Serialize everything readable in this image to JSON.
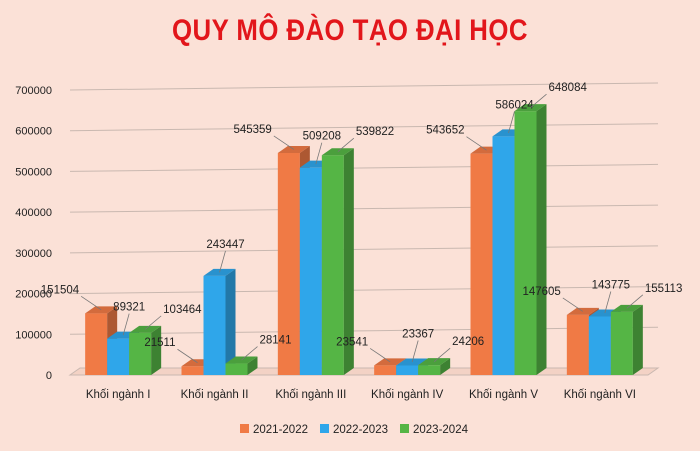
{
  "chart_data": {
    "type": "bar",
    "title": "QUY MÔ ĐÀO TẠO ĐẠI HỌC",
    "categories": [
      "Khối ngành I",
      "Khối ngành II",
      "Khối ngành III",
      "Khối ngành IV",
      "Khối ngành V",
      "Khối ngành VI"
    ],
    "series": [
      {
        "name": "2021-2022",
        "values": [
          151504,
          21511,
          545359,
          23541,
          543652,
          147605
        ],
        "color": "#f07a45"
      },
      {
        "name": "2022-2023",
        "values": [
          89321,
          243447,
          509208,
          23367,
          586024,
          143775
        ],
        "color": "#2fa6ea"
      },
      {
        "name": "2023-2024",
        "values": [
          103464,
          28141,
          539822,
          24206,
          648084,
          155113
        ],
        "color": "#55b545"
      }
    ],
    "yticks": [
      0,
      100000,
      200000,
      300000,
      400000,
      500000,
      600000,
      700000
    ],
    "ylim": [
      0,
      700000
    ],
    "grid": true,
    "legend": "bottom",
    "title_color": "#e2161b"
  }
}
